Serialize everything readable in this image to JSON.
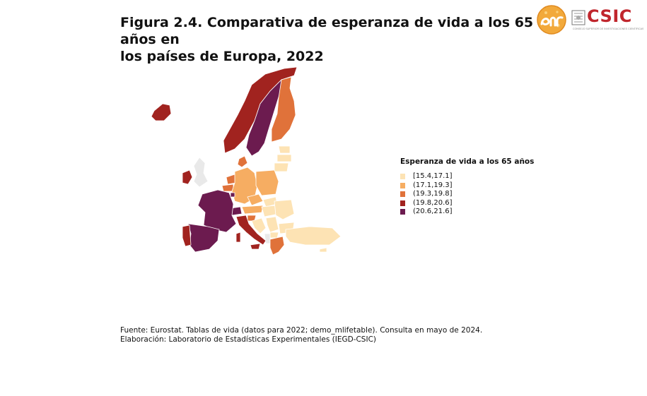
{
  "title": {
    "line1": "Figura 2.4. Comparativa de esperanza de vida a los 65 años en",
    "line2": "los países de Europa, 2022"
  },
  "logos": {
    "enr_logo_text": "enr",
    "csic_logo_text": "CSIC",
    "csic_subtitle": "CONSEJO SUPERIOR DE INVESTIGACIONES CIENTÍFICAS"
  },
  "legend": {
    "title": "Esperanza de vida a los 65 años",
    "classes": [
      {
        "label": "[15.4,17.1]",
        "color": "#fde3b4"
      },
      {
        "label": "(17.1,19.3]",
        "color": "#f6ad62"
      },
      {
        "label": "(19.3,19.8]",
        "color": "#e0723a"
      },
      {
        "label": "(19.8,20.6]",
        "color": "#a1231f"
      },
      {
        "label": "(20.6,21.6]",
        "color": "#6c1b4f"
      }
    ]
  },
  "map": {
    "no_data_color": "#e9e9e9",
    "border_color": "#ffffff"
  },
  "footer": {
    "source": "Fuente: Eurostat. Tablas de vida (datos para 2022; demo_mlifetable). Consulta en mayo de 2024.",
    "credit": "Elaboración: Laboratorio de Estadísticas Experimentales (IEGD-CSIC)"
  }
}
